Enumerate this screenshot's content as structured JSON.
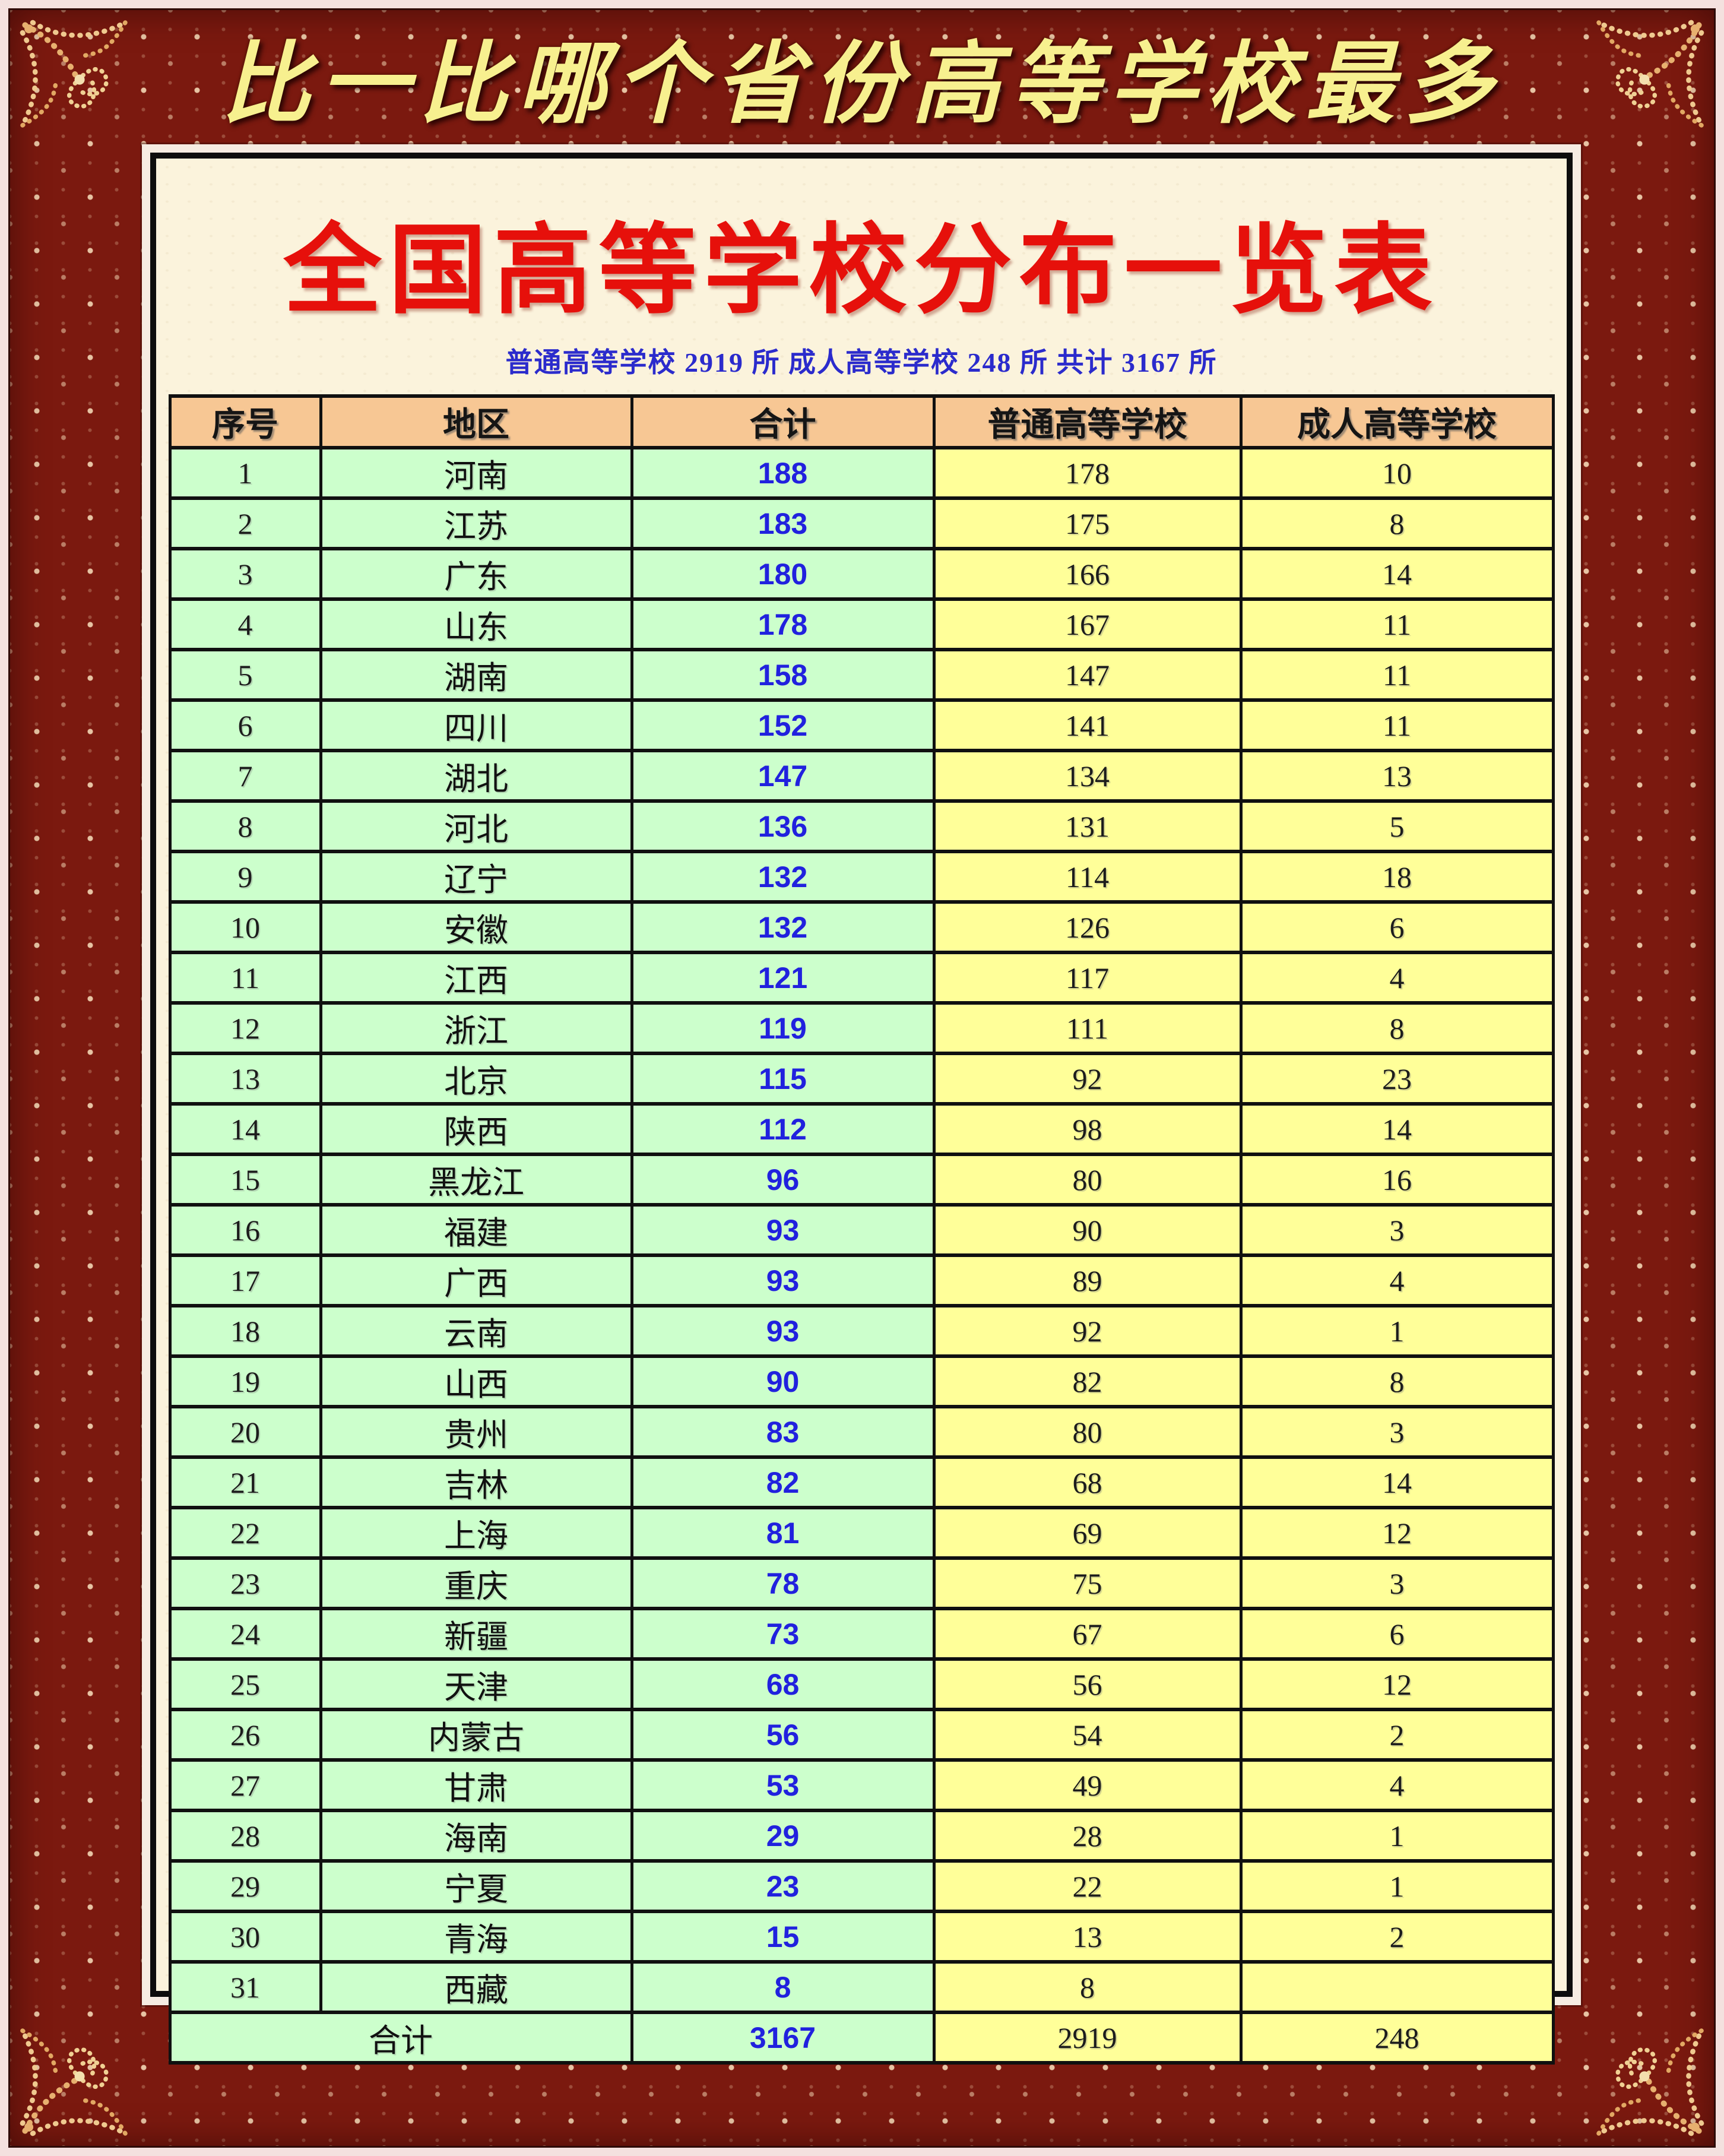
{
  "colors": {
    "frame_maroon": "#7B190F",
    "frame_outer_pink": "#F4E1DF",
    "frame_gold": "#EFC98F",
    "panel_cream": "#FBF3DC",
    "banner_gold_text": "#F7F08F",
    "title_red": "#E6100B",
    "subtitle_blue": "#2B2BCC",
    "header_peach": "#F7C794",
    "cell_green": "#CCFFCC",
    "cell_yellow": "#FFFF99",
    "total_value_blue": "#2121DE"
  },
  "banner": {
    "title": "比一比哪个省份高等学校最多"
  },
  "poster": {
    "title": "全国高等学校分布一览表",
    "subtitle": "普通高等学校 2919 所  成人高等学校 248 所  共计 3167 所"
  },
  "table": {
    "columns": [
      "序号",
      "地区",
      "合计",
      "普通高等学校",
      "成人高等学校"
    ],
    "rows": [
      {
        "no": "1",
        "region": "河南",
        "total": "188",
        "regular": "178",
        "adult": "10"
      },
      {
        "no": "2",
        "region": "江苏",
        "total": "183",
        "regular": "175",
        "adult": "8"
      },
      {
        "no": "3",
        "region": "广东",
        "total": "180",
        "regular": "166",
        "adult": "14"
      },
      {
        "no": "4",
        "region": "山东",
        "total": "178",
        "regular": "167",
        "adult": "11"
      },
      {
        "no": "5",
        "region": "湖南",
        "total": "158",
        "regular": "147",
        "adult": "11"
      },
      {
        "no": "6",
        "region": "四川",
        "total": "152",
        "regular": "141",
        "adult": "11"
      },
      {
        "no": "7",
        "region": "湖北",
        "total": "147",
        "regular": "134",
        "adult": "13"
      },
      {
        "no": "8",
        "region": "河北",
        "total": "136",
        "regular": "131",
        "adult": "5"
      },
      {
        "no": "9",
        "region": "辽宁",
        "total": "132",
        "regular": "114",
        "adult": "18"
      },
      {
        "no": "10",
        "region": "安徽",
        "total": "132",
        "regular": "126",
        "adult": "6"
      },
      {
        "no": "11",
        "region": "江西",
        "total": "121",
        "regular": "117",
        "adult": "4"
      },
      {
        "no": "12",
        "region": "浙江",
        "total": "119",
        "regular": "111",
        "adult": "8"
      },
      {
        "no": "13",
        "region": "北京",
        "total": "115",
        "regular": "92",
        "adult": "23"
      },
      {
        "no": "14",
        "region": "陕西",
        "total": "112",
        "regular": "98",
        "adult": "14"
      },
      {
        "no": "15",
        "region": "黑龙江",
        "total": "96",
        "regular": "80",
        "adult": "16"
      },
      {
        "no": "16",
        "region": "福建",
        "total": "93",
        "regular": "90",
        "adult": "3"
      },
      {
        "no": "17",
        "region": "广西",
        "total": "93",
        "regular": "89",
        "adult": "4"
      },
      {
        "no": "18",
        "region": "云南",
        "total": "93",
        "regular": "92",
        "adult": "1"
      },
      {
        "no": "19",
        "region": "山西",
        "total": "90",
        "regular": "82",
        "adult": "8"
      },
      {
        "no": "20",
        "region": "贵州",
        "total": "83",
        "regular": "80",
        "adult": "3"
      },
      {
        "no": "21",
        "region": "吉林",
        "total": "82",
        "regular": "68",
        "adult": "14"
      },
      {
        "no": "22",
        "region": "上海",
        "total": "81",
        "regular": "69",
        "adult": "12"
      },
      {
        "no": "23",
        "region": "重庆",
        "total": "78",
        "regular": "75",
        "adult": "3"
      },
      {
        "no": "24",
        "region": "新疆",
        "total": "73",
        "regular": "67",
        "adult": "6"
      },
      {
        "no": "25",
        "region": "天津",
        "total": "68",
        "regular": "56",
        "adult": "12"
      },
      {
        "no": "26",
        "region": "内蒙古",
        "total": "56",
        "regular": "54",
        "adult": "2"
      },
      {
        "no": "27",
        "region": "甘肃",
        "total": "53",
        "regular": "49",
        "adult": "4"
      },
      {
        "no": "28",
        "region": "海南",
        "total": "29",
        "regular": "28",
        "adult": "1"
      },
      {
        "no": "29",
        "region": "宁夏",
        "total": "23",
        "regular": "22",
        "adult": "1"
      },
      {
        "no": "30",
        "region": "青海",
        "total": "15",
        "regular": "13",
        "adult": "2"
      },
      {
        "no": "31",
        "region": "西藏",
        "total": "8",
        "regular": "8",
        "adult": ""
      }
    ],
    "footer": {
      "label": "合计",
      "total": "3167",
      "regular": "2919",
      "adult": "248"
    }
  }
}
